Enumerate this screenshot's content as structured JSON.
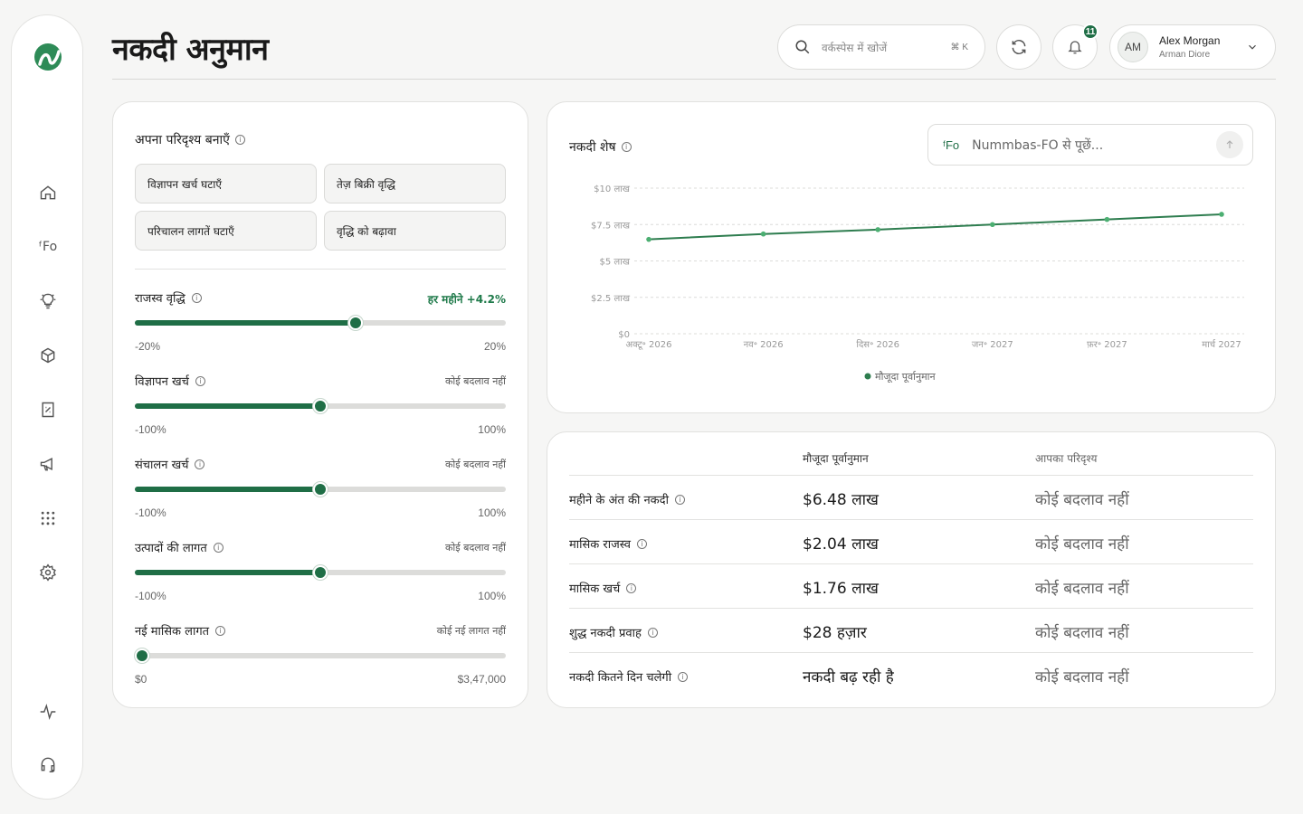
{
  "page_title": "नकदी अनुमान",
  "search": {
    "placeholder": "वर्कस्पेस में खोजें",
    "shortcut": "⌘ K"
  },
  "notifications": {
    "count": "11"
  },
  "profile": {
    "initials": "AM",
    "name": "Alex Morgan",
    "subtitle": "Arman Diore"
  },
  "sidebar": {
    "items": [
      {
        "name": "home-icon"
      },
      {
        "name": "fo-icon",
        "glyph": "ᶠFo"
      },
      {
        "name": "lightbulb-icon"
      },
      {
        "name": "box-icon"
      },
      {
        "name": "report-icon"
      },
      {
        "name": "megaphone-icon"
      },
      {
        "name": "apps-grid-icon"
      },
      {
        "name": "gear-icon"
      },
      {
        "name": "activity-icon"
      },
      {
        "name": "headset-icon"
      }
    ]
  },
  "scenario": {
    "title": "अपना परिदृश्य बनाएँ",
    "presets": [
      "विज्ञापन खर्च घटाएँ",
      "तेज़ बिक्री वृद्धि",
      "परिचालन लागतें घटाएँ",
      "वृद्धि को बढ़ावा"
    ],
    "sliders": [
      {
        "label": "राजस्व वृद्धि",
        "value_text": "हर महीने +4.2%",
        "min": "-20%",
        "max": "20%",
        "level": 0.595,
        "highlight": true
      },
      {
        "label": "विज्ञापन खर्च",
        "value_text": "कोई बदलाव नहीं",
        "min": "-100%",
        "max": "100%",
        "level": 0.5,
        "highlight": false
      },
      {
        "label": "संचालन खर्च",
        "value_text": "कोई बदलाव नहीं",
        "min": "-100%",
        "max": "100%",
        "level": 0.5,
        "highlight": false
      },
      {
        "label": "उत्पादों की लागत",
        "value_text": "कोई बदलाव नहीं",
        "min": "-100%",
        "max": "100%",
        "level": 0.5,
        "highlight": false
      },
      {
        "label": "नई मासिक लागत",
        "value_text": "कोई नई लागत नहीं",
        "min": "$0",
        "max": "$3,47,000",
        "level": 0.0,
        "highlight": false
      }
    ]
  },
  "cash_chart": {
    "title": "नकदी शेष",
    "ask_prefix": "ᶠFo",
    "ask_placeholder": "Nummbas-FO से पूछें...",
    "accent": "#2e7d4f"
  },
  "chart_data": {
    "type": "line",
    "categories": [
      "अक्टू॰ 2026",
      "नव॰ 2026",
      "दिस॰ 2026",
      "जन॰ 2027",
      "फ़र॰ 2027",
      "मार्च 2027"
    ],
    "y_ticks": [
      "$0",
      "$2.5 लाख",
      "$5 लाख",
      "$7.5 लाख",
      "$10 लाख"
    ],
    "ylim": [
      0,
      10
    ],
    "series": [
      {
        "name": "मौजूदा पूर्वानुमान",
        "values": [
          6.48,
          6.85,
          7.15,
          7.5,
          7.85,
          8.2
        ]
      }
    ],
    "legend_position": "bottom-center",
    "grid": true
  },
  "comparison": {
    "headers": {
      "current": "मौजूदा पूर्वानुमान",
      "scenario": "आपका परिदृश्य"
    },
    "rows": [
      {
        "label": "महीने के अंत की नकदी",
        "current": "$6.48 लाख",
        "scenario": "कोई बदलाव नहीं"
      },
      {
        "label": "मासिक राजस्व",
        "current": "$2.04 लाख",
        "scenario": "कोई बदलाव नहीं"
      },
      {
        "label": "मासिक खर्च",
        "current": "$1.76 लाख",
        "scenario": "कोई बदलाव नहीं"
      },
      {
        "label": "शुद्ध नकदी प्रवाह",
        "current": "$28 हज़ार",
        "scenario": "कोई बदलाव नहीं"
      },
      {
        "label": "नकदी कितने दिन चलेगी",
        "current": "नकदी बढ़ रही है",
        "scenario": "कोई बदलाव नहीं"
      }
    ]
  }
}
